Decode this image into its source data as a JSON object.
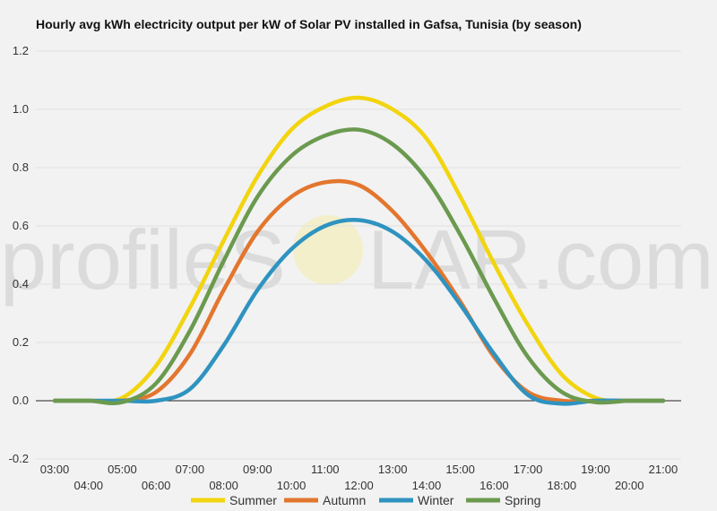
{
  "chart_data": {
    "type": "line",
    "title": "Hourly avg kWh electricity output per kW of Solar PV installed in Gafsa, Tunisia (by season)",
    "watermark": {
      "left": "profileS",
      "right": "LAR.com"
    },
    "xlabel": "",
    "ylabel": "",
    "ylim": [
      -0.2,
      1.2
    ],
    "y_ticks": [
      "1.2",
      "1.0",
      "0.8",
      "0.6",
      "0.4",
      "0.2",
      "0.0",
      "-0.2"
    ],
    "y_tick_values": [
      1.2,
      1.0,
      0.8,
      0.6,
      0.4,
      0.2,
      0.0,
      -0.2
    ],
    "x": [
      3,
      4,
      5,
      6,
      7,
      8,
      9,
      10,
      11,
      12,
      13,
      14,
      15,
      16,
      17,
      18,
      19,
      20,
      21
    ],
    "x_tick_labels": [
      "03:00",
      "04:00",
      "05:00",
      "06:00",
      "07:00",
      "08:00",
      "09:00",
      "10:00",
      "11:00",
      "12:00",
      "13:00",
      "14:00",
      "15:00",
      "16:00",
      "17:00",
      "18:00",
      "19:00",
      "20:00",
      "21:00"
    ],
    "grid": true,
    "legend_position": "bottom",
    "series": [
      {
        "name": "Summer",
        "color": "#f2d40f",
        "values": [
          0,
          0,
          0.01,
          0.12,
          0.32,
          0.55,
          0.77,
          0.93,
          1.01,
          1.04,
          1.0,
          0.9,
          0.7,
          0.47,
          0.26,
          0.09,
          0.01,
          0,
          0
        ]
      },
      {
        "name": "Autumn",
        "color": "#e3762e",
        "values": [
          0,
          0,
          0,
          0.03,
          0.16,
          0.38,
          0.58,
          0.7,
          0.75,
          0.74,
          0.65,
          0.51,
          0.34,
          0.15,
          0.03,
          0,
          0,
          0,
          0
        ]
      },
      {
        "name": "Winter",
        "color": "#2f93c0",
        "values": [
          0,
          0,
          0,
          0,
          0.04,
          0.19,
          0.38,
          0.52,
          0.6,
          0.62,
          0.58,
          0.48,
          0.33,
          0.16,
          0.02,
          -0.01,
          0,
          0,
          0
        ]
      },
      {
        "name": "Spring",
        "color": "#6b9a4f",
        "values": [
          0,
          0,
          -0.005,
          0.06,
          0.24,
          0.48,
          0.7,
          0.84,
          0.91,
          0.93,
          0.88,
          0.76,
          0.57,
          0.35,
          0.15,
          0.03,
          -0.005,
          0,
          0
        ]
      }
    ]
  }
}
